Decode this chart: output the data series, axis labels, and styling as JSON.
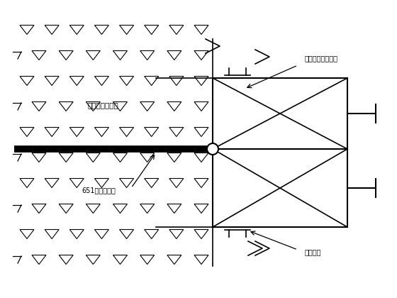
{
  "bg_color": "#ffffff",
  "label_concrete": "先期浇筑混凝土",
  "label_waterstop": "651橡胶止水带",
  "label_clamp": "夹具固定于模板上",
  "label_finger": "指头模板",
  "figsize": [
    5.6,
    4.2
  ],
  "dpi": 100
}
